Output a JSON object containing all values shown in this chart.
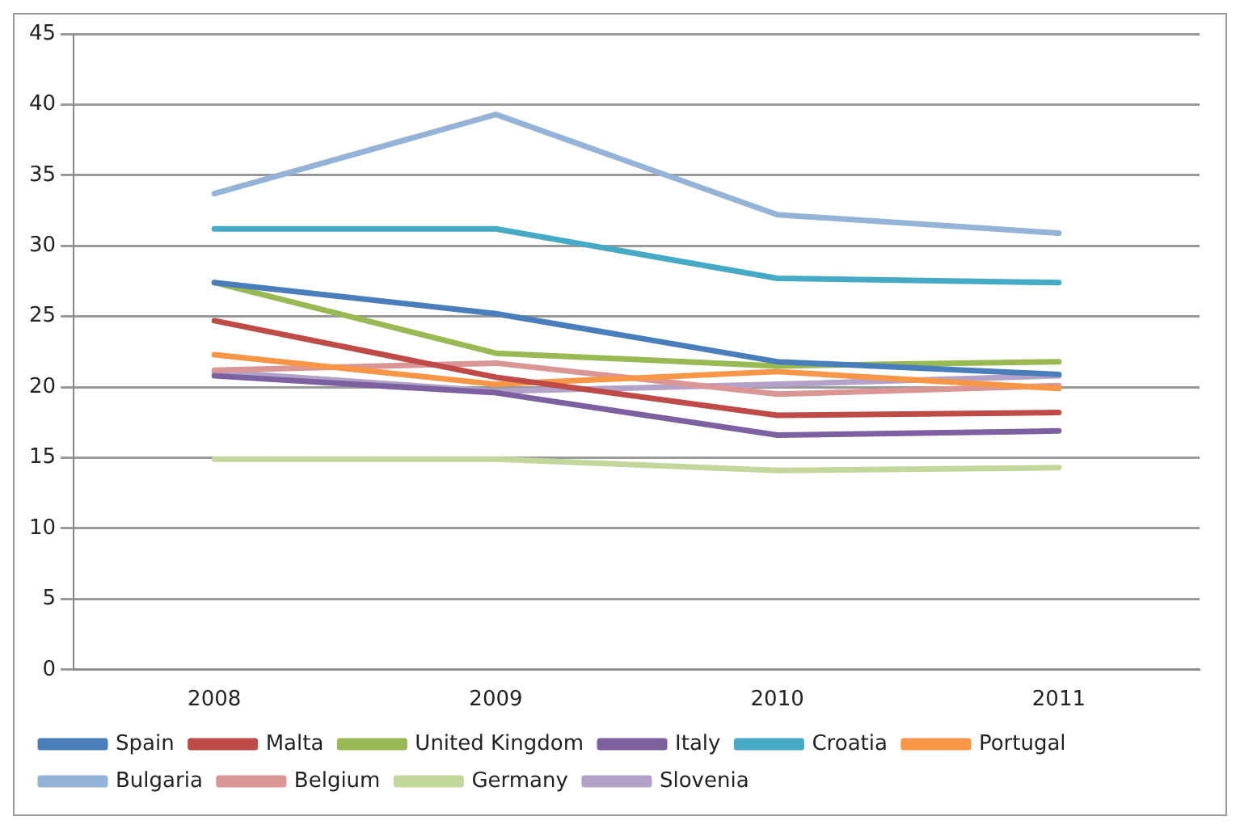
{
  "chart_data": {
    "type": "line",
    "categories": [
      "2008",
      "2009",
      "2010",
      "2011"
    ],
    "series": [
      {
        "name": "Spain",
        "color": "#4a7ebb",
        "values": [
          27.4,
          25.2,
          21.8,
          20.9
        ]
      },
      {
        "name": "Malta",
        "color": "#be4b48",
        "values": [
          24.7,
          20.7,
          18.0,
          18.2
        ]
      },
      {
        "name": "United Kingdom",
        "color": "#98b954",
        "values": [
          27.4,
          22.4,
          21.5,
          21.8
        ]
      },
      {
        "name": "Italy",
        "color": "#7d60a0",
        "values": [
          20.8,
          19.6,
          16.6,
          16.9
        ]
      },
      {
        "name": "Croatia",
        "color": "#46aac5",
        "values": [
          31.2,
          31.2,
          27.7,
          27.4
        ]
      },
      {
        "name": "Portugal",
        "color": "#f79646",
        "values": [
          22.3,
          20.2,
          21.1,
          19.9
        ]
      },
      {
        "name": "Bulgaria",
        "color": "#95b3d7",
        "values": [
          33.7,
          39.3,
          32.2,
          30.9
        ]
      },
      {
        "name": "Belgium",
        "color": "#d99694",
        "values": [
          21.2,
          21.7,
          19.5,
          20.1
        ]
      },
      {
        "name": "Germany",
        "color": "#c3d69b",
        "values": [
          14.9,
          14.9,
          14.1,
          14.3
        ]
      },
      {
        "name": "Slovenia",
        "color": "#b3a2c7",
        "values": [
          21.1,
          19.7,
          20.2,
          20.8
        ]
      }
    ],
    "ylim": [
      0,
      45
    ],
    "yticks": [
      0,
      5,
      10,
      15,
      20,
      25,
      30,
      35,
      40,
      45
    ],
    "grid": "y",
    "legend": "bottom",
    "marker": "none",
    "line_style": "solid"
  }
}
